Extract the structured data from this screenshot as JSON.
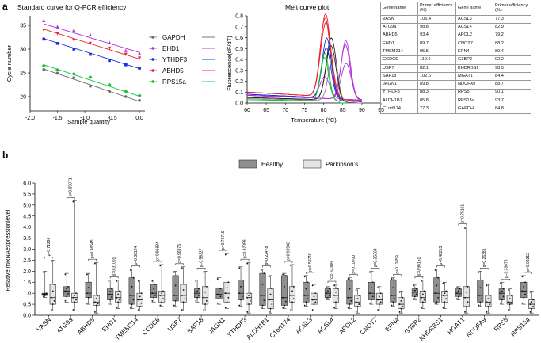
{
  "panels": {
    "a": "a",
    "b": "b"
  },
  "std_curve": {
    "title": "Standard curve for Q-PCR efficiency",
    "xlabel": "Sample quantity",
    "ylabel": "Cycle number",
    "xticks": [
      "-2.0",
      "-1.5",
      "-1.0",
      "-0.5",
      "0.0"
    ],
    "yticks": [
      "20",
      "25",
      "30",
      "35"
    ],
    "legend": [
      "GAPDH",
      "EHD1",
      "YTHDF3",
      "ABHD5",
      "RPS15a"
    ],
    "colors": {
      "GAPDH": "#6b6b6b",
      "EHD1": "#b030d8",
      "YTHDF3": "#1a2ee0",
      "ABHD5": "#e8242e",
      "RPS15a": "#19c03a"
    }
  },
  "melt": {
    "title": "Melt curve plot",
    "xlabel": "Temperature (°C)",
    "ylabel": "Fluorescence(dF/dT)",
    "xticks": [
      "60",
      "65",
      "70",
      "75",
      "80",
      "85",
      "90",
      "95"
    ],
    "yticks": [
      "0.0",
      "0.1",
      "0.2",
      "0.3",
      "0.4",
      "0.5",
      "0.6",
      "0.7",
      "0.8"
    ]
  },
  "table": {
    "headers": [
      "Gene name",
      "Primer efficiency (%)",
      "Gene name",
      "Primer efficiency (%)"
    ],
    "rows": [
      [
        "VASN",
        "106.4",
        "ACSL3",
        "77.3"
      ],
      [
        "ATG9a",
        "98.8",
        "ACSL4",
        "82.9"
      ],
      [
        "ABHD5",
        "93.4",
        "APOL2",
        "79.2"
      ],
      [
        "EHD1",
        "89.7",
        "CNOT7",
        "88.2"
      ],
      [
        "TMEM214",
        "95.5",
        "EPN4",
        "89.4"
      ],
      [
        "CCDC6",
        "110.6",
        "G3BP2",
        "92.2"
      ],
      [
        "USP7",
        "82.1",
        "KHDRBS1",
        "98.5"
      ],
      [
        "SAP18",
        "102.6",
        "MGAT1",
        "84.4"
      ],
      [
        "JAGN1",
        "89.8",
        "NDUFA9",
        "88.7"
      ],
      [
        "YTHDF3",
        "88.3",
        "RPS5",
        "90.1"
      ],
      [
        "ALDH1B1",
        "85.8",
        "RPS15a",
        "93.7"
      ],
      [
        "C1orf174",
        "77.3",
        "GAPDH",
        "84.8"
      ]
    ]
  },
  "chart_data": [
    {
      "type": "scatter",
      "title": "Standard curve for Q-PCR efficiency",
      "xlabel": "Sample quantity",
      "ylabel": "Cycle number",
      "xlim": [
        -2.0,
        0.1
      ],
      "ylim": [
        17,
        37
      ],
      "x": [
        -1.75,
        -1.5,
        -1.2,
        -0.9,
        -0.55,
        -0.25,
        0.0
      ],
      "series": [
        {
          "name": "GAPDH",
          "values": [
            25.7,
            24.9,
            24.0,
            22.2,
            21.1,
            20.0,
            19.2
          ],
          "fit": [
            25.8,
            19.0
          ]
        },
        {
          "name": "EHD1",
          "values": [
            36.0,
            34.7,
            34.0,
            33.0,
            31.4,
            29.7,
            29.1
          ],
          "fit": [
            35.3,
            29.3
          ]
        },
        {
          "name": "YTHDF3",
          "values": [
            32.1,
            31.2,
            30.0,
            28.9,
            27.6,
            26.7,
            26.0
          ],
          "fit": [
            32.2,
            25.9
          ]
        },
        {
          "name": "ABHD5",
          "values": [
            34.0,
            33.3,
            31.9,
            31.2,
            30.2,
            28.9,
            28.1
          ],
          "fit": [
            34.2,
            27.9
          ]
        },
        {
          "name": "RPS15a",
          "values": [
            26.5,
            25.6,
            24.8,
            24.1,
            22.5,
            21.1,
            20.2
          ],
          "fit": [
            26.7,
            20.1
          ]
        }
      ]
    },
    {
      "type": "line",
      "title": "Melt curve plot",
      "xlabel": "Temperature (°C)",
      "ylabel": "Fluorescence(dF/dT)",
      "xlim": [
        60,
        95
      ],
      "ylim": [
        0,
        0.8
      ],
      "series": [
        {
          "name": "red",
          "color": "#e8242e",
          "baseline": 0.1,
          "peaks": [
            {
              "x": 80.5,
              "y": 0.76,
              "w": 1.3
            },
            {
              "x": 80.4,
              "y": 0.72,
              "w": 1.3
            },
            {
              "x": 80.6,
              "y": 0.68,
              "w": 1.4
            }
          ]
        },
        {
          "name": "purple",
          "color": "#b030d8",
          "baseline": 0.07,
          "peaks": [
            {
              "x": 85.8,
              "y": 0.54,
              "w": 1.2
            },
            {
              "x": 85.7,
              "y": 0.5,
              "w": 1.2
            },
            {
              "x": 85.9,
              "y": 0.33,
              "w": 1.3
            },
            {
              "x": 80.3,
              "y": 0.2,
              "w": 1.3
            }
          ]
        },
        {
          "name": "black",
          "color": "#222222",
          "baseline": 0.05,
          "peaks": [
            {
              "x": 82.0,
              "y": 0.57,
              "w": 1.3
            },
            {
              "x": 81.9,
              "y": 0.5,
              "w": 1.3
            }
          ]
        },
        {
          "name": "blue",
          "color": "#1a2ee0",
          "baseline": 0.08,
          "peaks": [
            {
              "x": 80.8,
              "y": 0.55,
              "w": 1.2
            },
            {
              "x": 80.7,
              "y": 0.46,
              "w": 1.2
            }
          ]
        },
        {
          "name": "green",
          "color": "#19c03a",
          "baseline": 0.03,
          "peaks": [
            {
              "x": 80.3,
              "y": 0.44,
              "w": 1.1
            },
            {
              "x": 80.2,
              "y": 0.4,
              "w": 1.1
            }
          ]
        },
        {
          "name": "grey",
          "color": "#888888",
          "baseline": 0.04,
          "peaks": [
            {
              "x": 82.5,
              "y": 0.42,
              "w": 1.2
            }
          ]
        }
      ]
    },
    {
      "type": "box",
      "ylabel": "Relative mRNAexpressionlevel",
      "ylim": [
        0,
        6.0
      ],
      "yticks": [
        "0.0",
        "0.5",
        "1.0",
        "1.5",
        "2.0",
        "2.5",
        "3.0",
        "3.5",
        "4.0",
        "4.5",
        "5.0",
        "5.5",
        "6.0"
      ],
      "legend": [
        "Healthy",
        "Parkinson's"
      ],
      "group_colors": [
        "#8f8f8f",
        "#e4e4e4"
      ],
      "categories": [
        "VASN",
        "ATG9a",
        "ABHD5",
        "EHD1",
        "TMEM214",
        "CCDC6",
        "USP7",
        "SAP18",
        "JAGN1",
        "YTHDF3",
        "ALDH1B1",
        "C1orf174",
        "ACSL3",
        "ACSL4",
        "APOL2",
        "CNOT7",
        "EPN4",
        "G3BP2",
        "KHDRBS1",
        "MGAT1",
        "NDUFA9",
        "RPS5",
        "RPS15a"
      ],
      "pvalues": [
        "p=0.71296",
        "p=0.85071",
        "p=0.96545",
        "p=0.31001",
        "p=0.38124",
        "p=0.96834",
        "p=0.96975",
        "p=0.58327",
        "p=0.70719",
        "p=0.92059",
        "p=0.22478",
        "p=0.90946",
        "p=0.59710",
        "p=0.97309",
        "p=0.10700",
        "p=0.35364",
        "p=0.11659",
        "p=0.96151",
        "p=0.48213",
        "p=0.75161",
        "p=0.26381",
        "p=0.33678",
        "p=0.09312"
      ],
      "healthy": [
        [
          0.8,
          0.9,
          0.95,
          1.0,
          2.0
        ],
        [
          0.6,
          0.85,
          1.1,
          1.3,
          1.9
        ],
        [
          0.5,
          0.8,
          1.0,
          1.5,
          1.9
        ],
        [
          0.5,
          0.7,
          0.95,
          1.2,
          1.6
        ],
        [
          0.3,
          0.5,
          0.9,
          1.7,
          2.1
        ],
        [
          0.6,
          0.8,
          1.0,
          1.4,
          1.6
        ],
        [
          0.4,
          0.65,
          0.9,
          1.8,
          2.0
        ],
        [
          0.6,
          0.8,
          1.0,
          1.2,
          1.6
        ],
        [
          0.5,
          0.75,
          0.95,
          1.2,
          1.7
        ],
        [
          0.4,
          0.7,
          1.0,
          1.6,
          2.2
        ],
        [
          0.3,
          0.45,
          0.9,
          1.9,
          2.1
        ],
        [
          0.3,
          0.45,
          0.8,
          1.8,
          1.9
        ],
        [
          0.4,
          0.6,
          0.9,
          1.5,
          1.8
        ],
        [
          0.7,
          0.8,
          1.0,
          1.2,
          1.3
        ],
        [
          0.3,
          0.5,
          0.8,
          1.6,
          1.7
        ],
        [
          0.5,
          0.7,
          1.0,
          1.5,
          2.0
        ],
        [
          0.4,
          0.6,
          0.9,
          1.6,
          1.7
        ],
        [
          0.7,
          0.85,
          1.05,
          1.2,
          1.4
        ],
        [
          0.5,
          0.6,
          1.0,
          1.7,
          2.1
        ],
        [
          0.7,
          0.85,
          1.0,
          1.2,
          1.3
        ],
        [
          0.4,
          0.6,
          0.9,
          1.6,
          2.0
        ],
        [
          0.5,
          0.7,
          1.0,
          1.2,
          1.5
        ],
        [
          0.5,
          0.8,
          1.1,
          1.5,
          1.8
        ]
      ],
      "parkinsons": [
        [
          0.2,
          0.5,
          0.8,
          1.4,
          2.5
        ],
        [
          0.2,
          0.6,
          0.8,
          1.0,
          5.2
        ],
        [
          0.1,
          0.45,
          0.6,
          0.9,
          2.4
        ],
        [
          0.3,
          0.6,
          0.8,
          1.1,
          1.6
        ],
        [
          0.2,
          0.4,
          0.7,
          1.0,
          1.6
        ],
        [
          0.4,
          0.6,
          0.9,
          1.1,
          2.3
        ],
        [
          0.2,
          0.6,
          0.9,
          1.4,
          2.2
        ],
        [
          0.2,
          0.5,
          0.8,
          1.3,
          2.0
        ],
        [
          0.3,
          0.6,
          1.0,
          1.5,
          2.8
        ],
        [
          0.1,
          0.5,
          0.8,
          1.0,
          2.4
        ],
        [
          0.1,
          0.3,
          0.7,
          1.2,
          1.8
        ],
        [
          0.2,
          0.6,
          0.9,
          1.3,
          2.3
        ],
        [
          0.2,
          0.5,
          0.7,
          1.0,
          1.4
        ],
        [
          0.3,
          0.6,
          0.9,
          1.2,
          1.4
        ],
        [
          0.1,
          0.4,
          0.6,
          0.9,
          1.2
        ],
        [
          0.2,
          0.5,
          0.7,
          1.0,
          1.3
        ],
        [
          0.1,
          0.3,
          0.5,
          0.8,
          1.1
        ],
        [
          0.3,
          0.6,
          0.8,
          1.1,
          1.6
        ],
        [
          0.3,
          0.6,
          0.9,
          1.1,
          1.5
        ],
        [
          0.1,
          0.4,
          0.8,
          1.3,
          4.0
        ],
        [
          0.1,
          0.4,
          0.6,
          0.9,
          1.4
        ],
        [
          0.2,
          0.5,
          0.6,
          0.9,
          1.2
        ],
        [
          0.1,
          0.3,
          0.5,
          0.7,
          1.1
        ]
      ]
    }
  ]
}
